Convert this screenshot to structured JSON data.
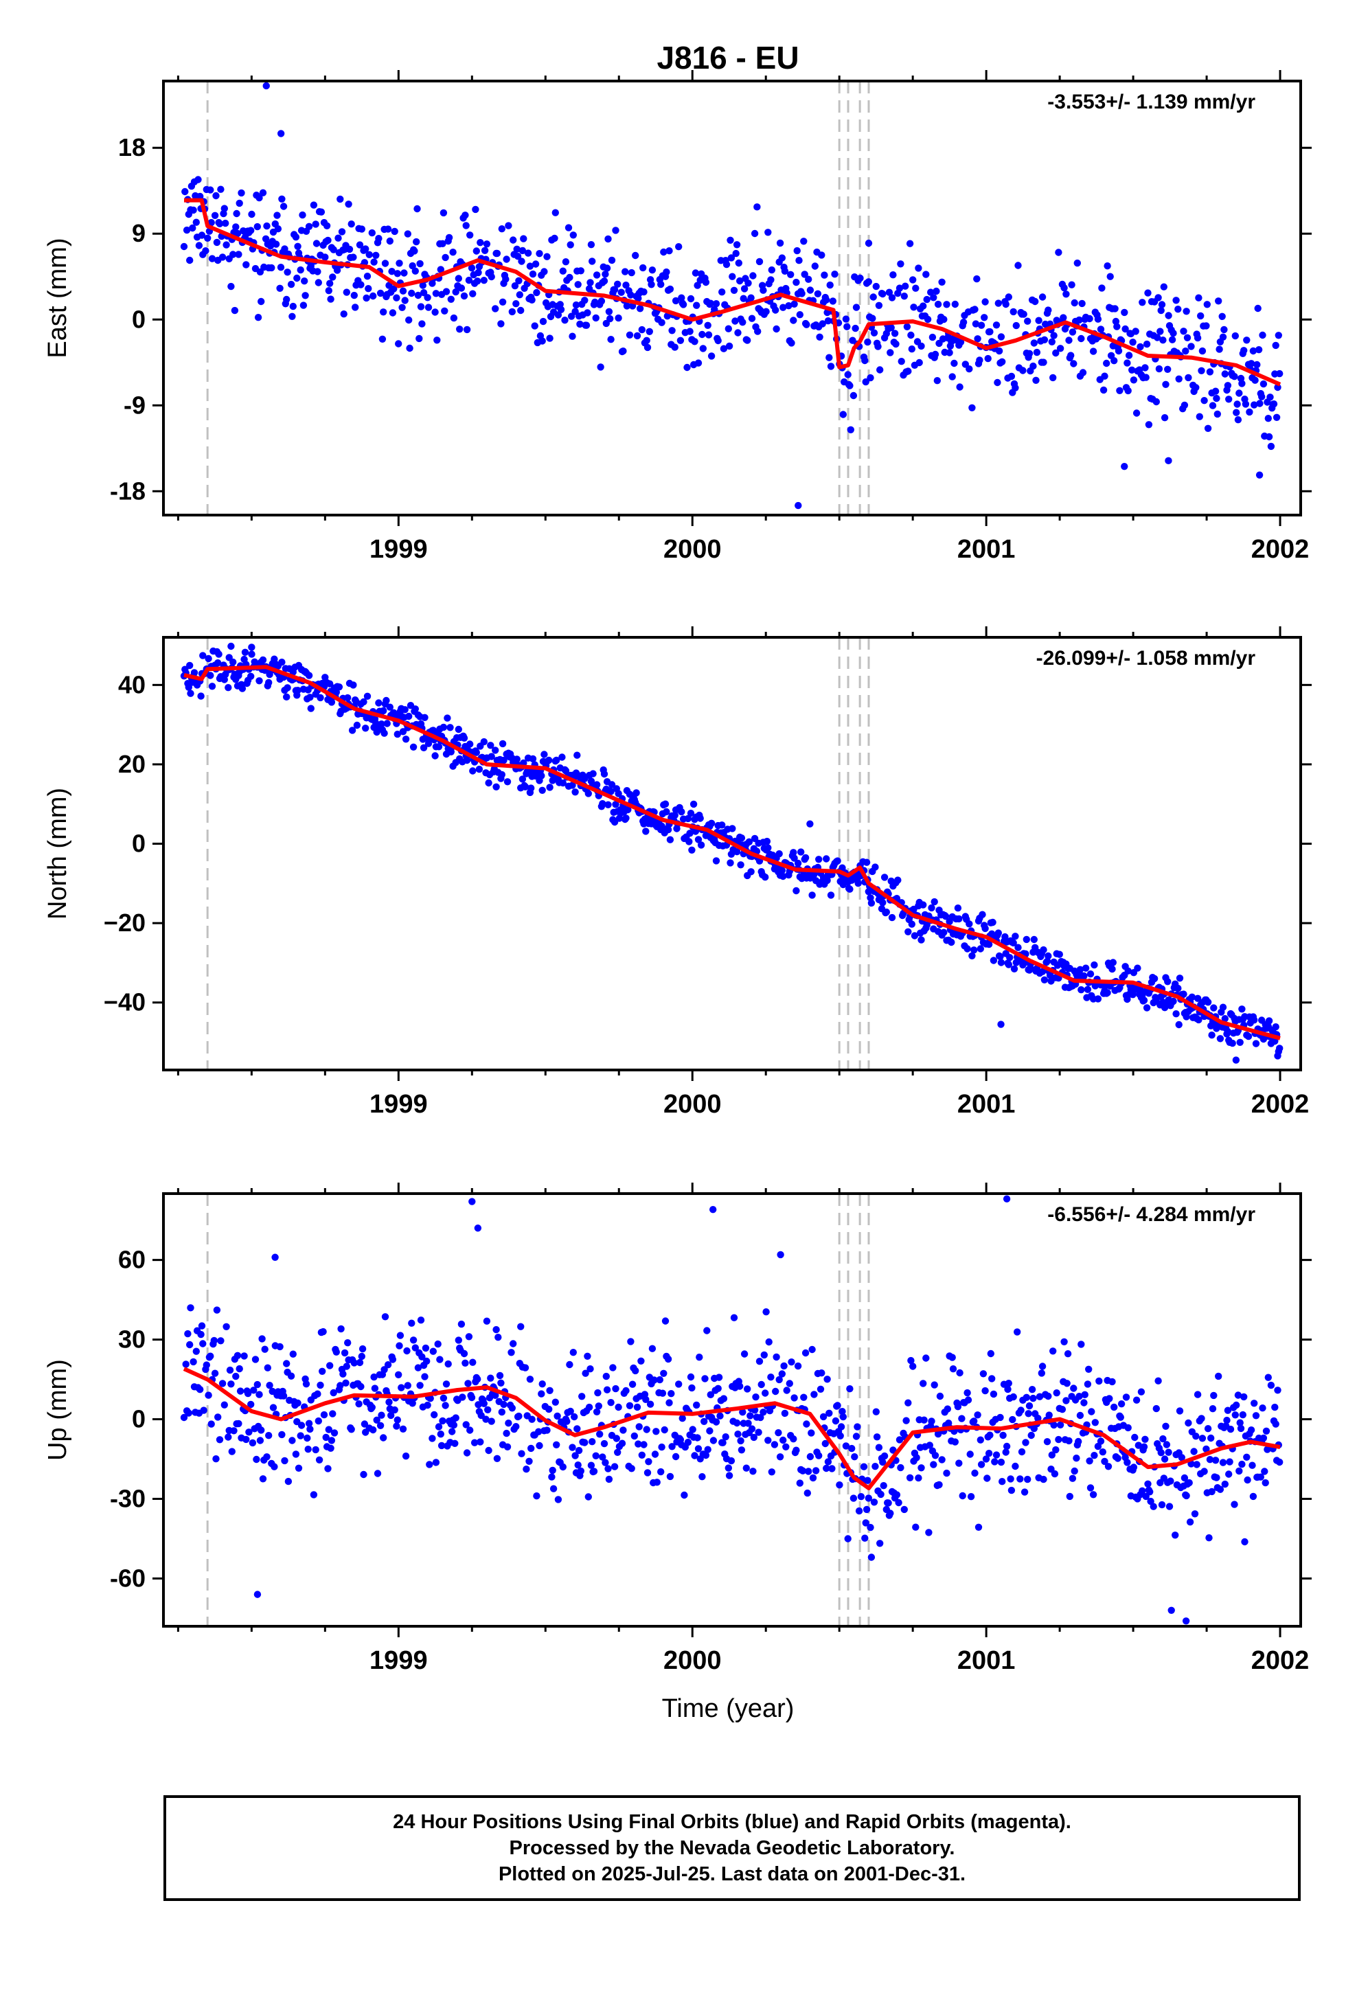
{
  "title": "J816 - EU",
  "colors": {
    "points": "#0000ff",
    "trend": "#ff0000",
    "breaks": "#c0c0c0",
    "axes": "#000000"
  },
  "xlabel": "Time (year)",
  "x_ticks": [
    "1999",
    "2000",
    "2001",
    "2002"
  ],
  "footer": {
    "line1": "24 Hour Positions Using Final Orbits (blue) and Rapid Orbits (magenta).",
    "line2": "Processed by the Nevada Geodetic Laboratory.",
    "line3": "Plotted on 2025-Jul-25. Last data on 2001-Dec-31."
  },
  "chart_data": [
    {
      "type": "scatter",
      "panel": "East",
      "ylabel": "East (mm)",
      "rate_label": "-3.553+/- 1.139 mm/yr",
      "xlim": [
        1998.2,
        2002.07
      ],
      "ylim": [
        -20.5,
        25
      ],
      "yticks": [
        "18",
        "9",
        "0",
        "-9",
        "-18"
      ],
      "ytick_values": [
        18,
        9,
        0,
        -9,
        -18
      ],
      "xticks": [
        1999,
        2000,
        2001,
        2002
      ],
      "breaks": [
        1998.35,
        2000.5,
        2000.53,
        2000.57,
        2000.6
      ],
      "trend": [
        [
          1998.27,
          12.5
        ],
        [
          1998.33,
          12.5
        ],
        [
          1998.35,
          9.8
        ],
        [
          1998.45,
          8.5
        ],
        [
          1998.6,
          6.6
        ],
        [
          1998.75,
          6.0
        ],
        [
          1998.9,
          5.5
        ],
        [
          1999.0,
          3.5
        ],
        [
          1999.1,
          4.2
        ],
        [
          1999.27,
          6.2
        ],
        [
          1999.4,
          5.0
        ],
        [
          1999.5,
          3.0
        ],
        [
          1999.7,
          2.5
        ],
        [
          1999.85,
          1.5
        ],
        [
          2000.0,
          0.0
        ],
        [
          2000.1,
          0.8
        ],
        [
          2000.3,
          2.6
        ],
        [
          2000.48,
          1.0
        ],
        [
          2000.5,
          -5.0
        ],
        [
          2000.53,
          -4.8
        ],
        [
          2000.55,
          -3.0
        ],
        [
          2000.57,
          -2.3
        ],
        [
          2000.6,
          -0.5
        ],
        [
          2000.75,
          -0.2
        ],
        [
          2000.85,
          -1.0
        ],
        [
          2001.0,
          -3.0
        ],
        [
          2001.1,
          -2.2
        ],
        [
          2001.27,
          -0.3
        ],
        [
          2001.4,
          -1.8
        ],
        [
          2001.55,
          -3.8
        ],
        [
          2001.7,
          -4.0
        ],
        [
          2001.85,
          -4.8
        ],
        [
          2002.0,
          -6.8
        ]
      ],
      "points": {
        "start": 1998.27,
        "end": 2002.0,
        "step": 0.0032,
        "scatter": 3.8,
        "seed": 11,
        "outliers": [
          [
            1998.55,
            24.5
          ],
          [
            1998.6,
            19.5
          ],
          [
            2000.22,
            11.8
          ],
          [
            2000.36,
            -19.5
          ],
          [
            2001.47,
            -15.4
          ],
          [
            2001.93,
            -16.3
          ],
          [
            2001.62,
            -14.8
          ],
          [
            2000.6,
            8.0
          ]
        ]
      }
    },
    {
      "type": "scatter",
      "panel": "North",
      "ylabel": "North (mm)",
      "rate_label": "-26.099+/- 1.058 mm/yr",
      "xlim": [
        1998.2,
        2002.07
      ],
      "ylim": [
        -57,
        52
      ],
      "yticks": [
        "40",
        "20",
        "0",
        "−20",
        "−40"
      ],
      "ytick_values": [
        40,
        20,
        0,
        -20,
        -40
      ],
      "xticks": [
        1999,
        2000,
        2001,
        2002
      ],
      "breaks": [
        1998.35,
        2000.5,
        2000.53,
        2000.57,
        2000.6
      ],
      "trend": [
        [
          1998.27,
          42.5
        ],
        [
          1998.33,
          41.5
        ],
        [
          1998.35,
          44.0
        ],
        [
          1998.55,
          44.5
        ],
        [
          1998.7,
          40.5
        ],
        [
          1998.85,
          34.0
        ],
        [
          1999.0,
          31.0
        ],
        [
          1999.15,
          26.0
        ],
        [
          1999.3,
          20.0
        ],
        [
          1999.5,
          19.0
        ],
        [
          1999.7,
          12.5
        ],
        [
          1999.9,
          6.0
        ],
        [
          2000.05,
          3.5
        ],
        [
          2000.2,
          -2.5
        ],
        [
          2000.35,
          -6.5
        ],
        [
          2000.5,
          -7.0
        ],
        [
          2000.53,
          -8.0
        ],
        [
          2000.57,
          -6.0
        ],
        [
          2000.6,
          -10.0
        ],
        [
          2000.75,
          -18.0
        ],
        [
          2000.9,
          -21.5
        ],
        [
          2001.0,
          -23.5
        ],
        [
          2001.15,
          -29.5
        ],
        [
          2001.3,
          -34.5
        ],
        [
          2001.5,
          -35.0
        ],
        [
          2001.65,
          -38.5
        ],
        [
          2001.8,
          -45.0
        ],
        [
          2002.0,
          -49.0
        ]
      ],
      "points": {
        "start": 1998.27,
        "end": 2002.0,
        "step": 0.0032,
        "scatter": 3.2,
        "seed": 23,
        "outliers": [
          [
            2001.05,
            -45.5
          ],
          [
            2001.85,
            -54.5
          ],
          [
            1998.5,
            49.5
          ],
          [
            2000.4,
            5.0
          ]
        ]
      }
    },
    {
      "type": "scatter",
      "panel": "Up",
      "ylabel": "Up (mm)",
      "rate_label": "-6.556+/- 4.284 mm/yr",
      "xlim": [
        1998.2,
        2002.07
      ],
      "ylim": [
        -78,
        85
      ],
      "yticks": [
        "60",
        "30",
        "0",
        "-30",
        "-60"
      ],
      "ytick_values": [
        60,
        30,
        0,
        -30,
        -60
      ],
      "xticks": [
        1999,
        2000,
        2001,
        2002
      ],
      "breaks": [
        1998.35,
        2000.5,
        2000.53,
        2000.57,
        2000.6
      ],
      "trend": [
        [
          1998.27,
          19.0
        ],
        [
          1998.35,
          15.0
        ],
        [
          1998.5,
          3.0
        ],
        [
          1998.6,
          0.0
        ],
        [
          1998.75,
          6.0
        ],
        [
          1998.85,
          9.0
        ],
        [
          1999.05,
          8.5
        ],
        [
          1999.2,
          11.0
        ],
        [
          1999.3,
          12.0
        ],
        [
          1999.4,
          8.0
        ],
        [
          1999.5,
          -0.5
        ],
        [
          1999.6,
          -6.0
        ],
        [
          1999.7,
          -3.0
        ],
        [
          1999.85,
          2.5
        ],
        [
          2000.0,
          2.0
        ],
        [
          2000.15,
          4.0
        ],
        [
          2000.28,
          6.0
        ],
        [
          2000.4,
          2.0
        ],
        [
          2000.5,
          -13.0
        ],
        [
          2000.55,
          -22.0
        ],
        [
          2000.6,
          -26.0
        ],
        [
          2000.75,
          -5.0
        ],
        [
          2000.9,
          -3.0
        ],
        [
          2001.05,
          -3.5
        ],
        [
          2001.25,
          0.0
        ],
        [
          2001.4,
          -6.0
        ],
        [
          2001.55,
          -18.0
        ],
        [
          2001.65,
          -17.0
        ],
        [
          2001.8,
          -11.0
        ],
        [
          2001.9,
          -8.5
        ],
        [
          2002.0,
          -10.5
        ]
      ],
      "points": {
        "start": 1998.27,
        "end": 2002.0,
        "step": 0.0032,
        "scatter": 17.0,
        "seed": 37,
        "outliers": [
          [
            1999.25,
            82.0
          ],
          [
            1999.27,
            72.0
          ],
          [
            2000.07,
            79.0
          ],
          [
            2001.07,
            83.0
          ],
          [
            2000.3,
            62.0
          ],
          [
            1998.52,
            -66.0
          ],
          [
            2001.63,
            -72.0
          ],
          [
            2001.68,
            -76.0
          ],
          [
            1998.58,
            61.0
          ]
        ]
      }
    }
  ]
}
